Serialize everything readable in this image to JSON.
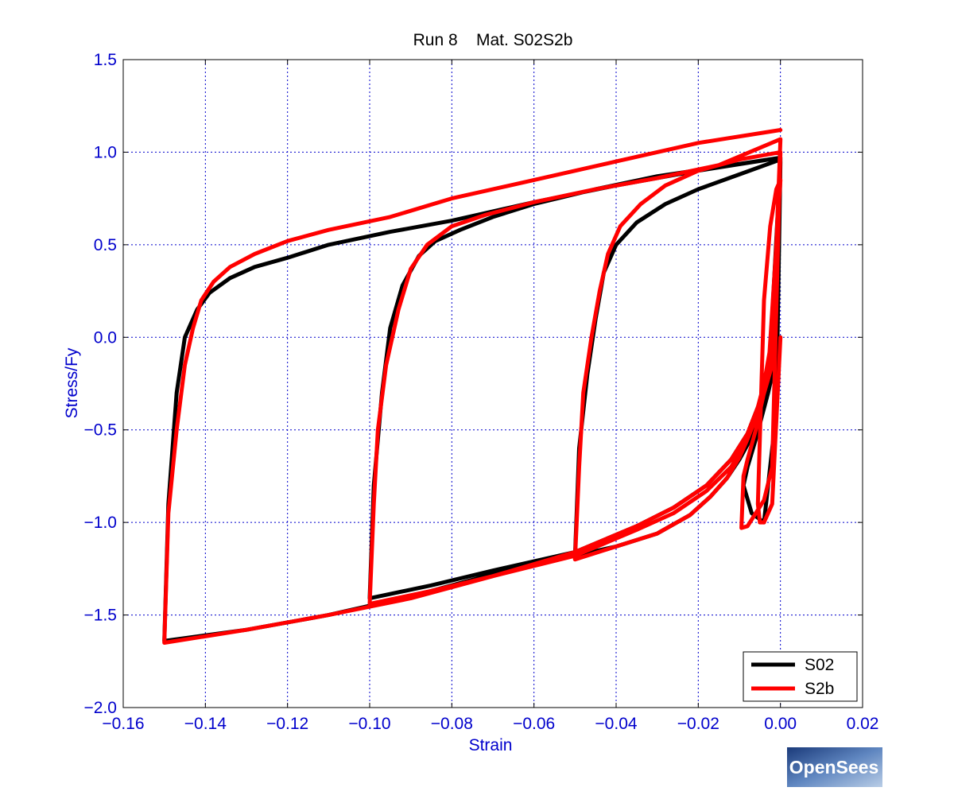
{
  "chart_data": {
    "type": "line",
    "title": "Run 8    Mat. S02S2b",
    "xlabel": "Strain",
    "ylabel": "Stress/Fy",
    "xlim": [
      -0.16,
      0.02
    ],
    "ylim": [
      -2.0,
      1.5
    ],
    "x_ticks": [
      -0.16,
      -0.14,
      -0.12,
      -0.1,
      -0.08,
      -0.06,
      -0.04,
      -0.02,
      0.0,
      0.02
    ],
    "x_tick_labels": [
      "−0.16",
      "−0.14",
      "−0.12",
      "−0.10",
      "−0.08",
      "−0.06",
      "−0.04",
      "−0.02",
      "0.00",
      "0.02"
    ],
    "y_ticks": [
      1.5,
      1.0,
      0.5,
      0.0,
      -0.5,
      -1.0,
      -1.5,
      -2.0
    ],
    "y_tick_labels": [
      "1.5",
      "1.0",
      "0.5",
      "0.0",
      "−0.5",
      "−1.0",
      "−1.5",
      "−2.0"
    ],
    "grid": true,
    "legend_position": "bottom-right",
    "series": [
      {
        "name": "S02",
        "color": "#000000",
        "x": [
          0,
          -0.003,
          -0.006,
          -0.008,
          -0.009,
          -0.007,
          -0.004,
          -0.001,
          0,
          -0.003,
          -0.006,
          -0.008,
          -0.009,
          -0.007,
          -0.004,
          -0.001,
          0,
          -0.002,
          -0.004,
          -0.006,
          -0.008,
          -0.01,
          -0.013,
          -0.017,
          -0.022,
          -0.03,
          -0.04,
          -0.05,
          -0.049,
          -0.047,
          -0.045,
          -0.043,
          -0.04,
          -0.035,
          -0.028,
          -0.02,
          -0.01,
          0,
          -0.002,
          -0.005,
          -0.008,
          -0.012,
          -0.018,
          -0.026,
          -0.035,
          -0.05,
          -0.07,
          -0.085,
          -0.1,
          -0.099,
          -0.097,
          -0.095,
          -0.092,
          -0.088,
          -0.084,
          -0.078,
          -0.07,
          -0.06,
          -0.045,
          -0.03,
          -0.015,
          0,
          -0.002,
          -0.005,
          -0.008,
          -0.012,
          -0.018,
          -0.026,
          -0.035,
          -0.05,
          -0.07,
          -0.09,
          -0.11,
          -0.13,
          -0.15,
          -0.149,
          -0.147,
          -0.145,
          -0.142,
          -0.139,
          -0.134,
          -0.128,
          -0.12,
          -0.11,
          -0.095,
          -0.08,
          -0.06,
          -0.04,
          -0.02,
          0
        ],
        "y": [
          0,
          -0.3,
          -0.55,
          -0.7,
          -0.8,
          -0.95,
          -1.0,
          -0.4,
          0.95,
          -0.3,
          -0.55,
          -0.7,
          -0.8,
          -0.95,
          -1.0,
          -0.4,
          0.95,
          -0.1,
          -0.32,
          -0.48,
          -0.58,
          -0.66,
          -0.76,
          -0.86,
          -0.96,
          -1.06,
          -1.13,
          -1.18,
          -0.6,
          -0.2,
          0.1,
          0.35,
          0.5,
          0.62,
          0.72,
          0.8,
          0.88,
          0.96,
          -0.1,
          -0.35,
          -0.52,
          -0.66,
          -0.8,
          -0.92,
          -1.02,
          -1.16,
          -1.26,
          -1.34,
          -1.41,
          -0.8,
          -0.3,
          0.05,
          0.28,
          0.44,
          0.52,
          0.58,
          0.65,
          0.72,
          0.8,
          0.87,
          0.92,
          0.97,
          -0.1,
          -0.35,
          -0.52,
          -0.66,
          -0.8,
          -0.92,
          -1.02,
          -1.16,
          -1.28,
          -1.4,
          -1.5,
          -1.58,
          -1.64,
          -0.9,
          -0.3,
          0.0,
          0.15,
          0.24,
          0.32,
          0.38,
          0.43,
          0.5,
          0.57,
          0.63,
          0.73,
          0.82,
          0.9,
          0.97
        ]
      },
      {
        "name": "S2b",
        "color": "#ff0000",
        "x": [
          0,
          -0.002,
          -0.004,
          -0.005,
          -0.0055,
          -0.004,
          -0.0025,
          -0.001,
          0,
          -0.003,
          -0.006,
          -0.008,
          -0.009,
          -0.0095,
          -0.008,
          -0.006,
          -0.004,
          -0.002,
          0,
          -0.002,
          -0.004,
          -0.006,
          -0.008,
          -0.01,
          -0.013,
          -0.017,
          -0.022,
          -0.03,
          -0.04,
          -0.05,
          -0.049,
          -0.048,
          -0.046,
          -0.044,
          -0.042,
          -0.039,
          -0.034,
          -0.028,
          -0.02,
          -0.01,
          0,
          -0.002,
          -0.005,
          -0.008,
          -0.012,
          -0.018,
          -0.026,
          -0.035,
          -0.05,
          -0.07,
          -0.085,
          -0.1,
          -0.099,
          -0.098,
          -0.096,
          -0.093,
          -0.09,
          -0.086,
          -0.08,
          -0.072,
          -0.06,
          -0.045,
          -0.03,
          -0.015,
          0,
          -0.002,
          -0.005,
          -0.008,
          -0.012,
          -0.018,
          -0.026,
          -0.035,
          -0.05,
          -0.07,
          -0.09,
          -0.11,
          -0.13,
          -0.15,
          -0.149,
          -0.147,
          -0.145,
          -0.143,
          -0.141,
          -0.138,
          -0.134,
          -0.128,
          -0.12,
          -0.11,
          -0.095,
          -0.08,
          -0.06,
          -0.04,
          -0.02,
          0
        ],
        "y": [
          0,
          -0.9,
          -1.0,
          -1.0,
          -0.9,
          0.2,
          0.6,
          0.8,
          0.85,
          -0.2,
          -0.5,
          -0.66,
          -0.75,
          -1.03,
          -1.02,
          -0.95,
          -0.88,
          -0.7,
          1.0,
          0.0,
          -0.25,
          -0.42,
          -0.55,
          -0.65,
          -0.76,
          -0.86,
          -0.96,
          -1.06,
          -1.13,
          -1.2,
          -0.7,
          -0.3,
          0.0,
          0.25,
          0.45,
          0.6,
          0.72,
          0.82,
          0.9,
          0.96,
          1.0,
          -0.15,
          -0.38,
          -0.55,
          -0.7,
          -0.83,
          -0.95,
          -1.04,
          -1.18,
          -1.29,
          -1.37,
          -1.44,
          -0.9,
          -0.5,
          -0.15,
          0.15,
          0.37,
          0.5,
          0.6,
          0.66,
          0.73,
          0.8,
          0.86,
          0.93,
          1.07,
          -0.1,
          -0.35,
          -0.52,
          -0.66,
          -0.8,
          -0.92,
          -1.02,
          -1.16,
          -1.29,
          -1.41,
          -1.5,
          -1.58,
          -1.65,
          -0.95,
          -0.5,
          -0.15,
          0.05,
          0.2,
          0.3,
          0.38,
          0.45,
          0.52,
          0.58,
          0.65,
          0.75,
          0.85,
          0.95,
          1.05,
          1.12
        ]
      }
    ]
  },
  "logo": {
    "text": "OpenSees"
  }
}
